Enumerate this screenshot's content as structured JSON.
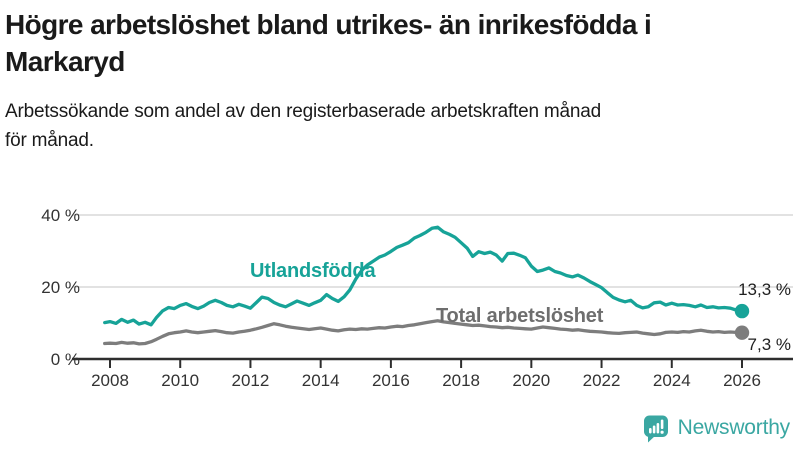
{
  "header": {
    "title": "Högre arbetslöshet bland utrikes- än inrikesfödda i Markaryd",
    "title_lines": [
      "Högre arbetslöshet bland utrikes- än inrikesfödda i",
      "Markaryd"
    ],
    "subtitle": "Arbetssökande som andel av den registerbaserade arbetskraften månad för månad.",
    "subtitle_lines": [
      "Arbetssökande som andel av den registerbaserade arbetskraften månad",
      "för månad."
    ]
  },
  "chart_data": {
    "type": "line",
    "title": "Högre arbetslöshet bland utrikes- än inrikesfödda i Markaryd",
    "subtitle": "Arbetssökande som andel av den registerbaserade arbetskraften månad för månad.",
    "xlabel": "",
    "ylabel": "",
    "grid": "horizontal",
    "legend": "inline-labels",
    "x_axis": {
      "min": 2007.85,
      "max": 2026.4,
      "ticks": [
        2008,
        2010,
        2012,
        2014,
        2016,
        2018,
        2020,
        2022,
        2024,
        2026
      ],
      "tick_labels": [
        "2008",
        "2010",
        "2012",
        "2014",
        "2016",
        "2018",
        "2020",
        "2022",
        "2024",
        "2026"
      ]
    },
    "y_axis": {
      "min": 0,
      "max": 40,
      "ticks": [
        0,
        20,
        40
      ],
      "tick_labels": [
        "0 %",
        "20 %",
        "40 %"
      ]
    },
    "series": [
      {
        "id": "utlandsfodda",
        "name": "Utlandsfödda",
        "color": "#17a398",
        "end_value": 13.3,
        "end_label": "13,3 %",
        "points": [
          [
            2007.85,
            10.1
          ],
          [
            2008.0,
            10.4
          ],
          [
            2008.17,
            9.9
          ],
          [
            2008.33,
            11.0
          ],
          [
            2008.5,
            10.2
          ],
          [
            2008.67,
            10.8
          ],
          [
            2008.83,
            9.7
          ],
          [
            2009.0,
            10.2
          ],
          [
            2009.17,
            9.5
          ],
          [
            2009.33,
            11.6
          ],
          [
            2009.5,
            13.4
          ],
          [
            2009.67,
            14.3
          ],
          [
            2009.83,
            14.0
          ],
          [
            2010.0,
            14.9
          ],
          [
            2010.17,
            15.4
          ],
          [
            2010.33,
            14.6
          ],
          [
            2010.5,
            14.0
          ],
          [
            2010.67,
            14.7
          ],
          [
            2010.83,
            15.7
          ],
          [
            2011.0,
            16.3
          ],
          [
            2011.17,
            15.7
          ],
          [
            2011.33,
            14.9
          ],
          [
            2011.5,
            14.5
          ],
          [
            2011.67,
            15.2
          ],
          [
            2011.83,
            14.7
          ],
          [
            2012.0,
            14.1
          ],
          [
            2012.17,
            15.7
          ],
          [
            2012.33,
            17.2
          ],
          [
            2012.5,
            16.8
          ],
          [
            2012.67,
            15.7
          ],
          [
            2012.83,
            15.0
          ],
          [
            2013.0,
            14.5
          ],
          [
            2013.17,
            15.3
          ],
          [
            2013.33,
            16.1
          ],
          [
            2013.5,
            15.5
          ],
          [
            2013.67,
            14.9
          ],
          [
            2013.83,
            15.6
          ],
          [
            2014.0,
            16.3
          ],
          [
            2014.17,
            17.9
          ],
          [
            2014.33,
            16.8
          ],
          [
            2014.5,
            16.0
          ],
          [
            2014.67,
            17.3
          ],
          [
            2014.83,
            19.2
          ],
          [
            2015.0,
            22.2
          ],
          [
            2015.17,
            24.6
          ],
          [
            2015.33,
            26.1
          ],
          [
            2015.5,
            27.2
          ],
          [
            2015.67,
            28.3
          ],
          [
            2015.83,
            28.9
          ],
          [
            2016.0,
            29.9
          ],
          [
            2016.17,
            31.0
          ],
          [
            2016.33,
            31.6
          ],
          [
            2016.5,
            32.3
          ],
          [
            2016.67,
            33.6
          ],
          [
            2016.83,
            34.3
          ],
          [
            2017.0,
            35.2
          ],
          [
            2017.17,
            36.3
          ],
          [
            2017.33,
            36.6
          ],
          [
            2017.5,
            35.3
          ],
          [
            2017.67,
            34.6
          ],
          [
            2017.83,
            33.8
          ],
          [
            2018.0,
            32.3
          ],
          [
            2018.17,
            30.8
          ],
          [
            2018.33,
            28.5
          ],
          [
            2018.5,
            29.8
          ],
          [
            2018.67,
            29.3
          ],
          [
            2018.83,
            29.7
          ],
          [
            2019.0,
            28.9
          ],
          [
            2019.17,
            27.2
          ],
          [
            2019.33,
            29.3
          ],
          [
            2019.5,
            29.4
          ],
          [
            2019.67,
            28.8
          ],
          [
            2019.83,
            28.1
          ],
          [
            2020.0,
            25.8
          ],
          [
            2020.17,
            24.3
          ],
          [
            2020.33,
            24.7
          ],
          [
            2020.5,
            25.3
          ],
          [
            2020.67,
            24.3
          ],
          [
            2020.83,
            23.9
          ],
          [
            2021.0,
            23.2
          ],
          [
            2021.17,
            22.8
          ],
          [
            2021.33,
            23.3
          ],
          [
            2021.5,
            22.5
          ],
          [
            2021.67,
            21.5
          ],
          [
            2021.83,
            20.7
          ],
          [
            2022.0,
            19.8
          ],
          [
            2022.17,
            18.4
          ],
          [
            2022.33,
            17.1
          ],
          [
            2022.5,
            16.4
          ],
          [
            2022.67,
            15.9
          ],
          [
            2022.83,
            16.3
          ],
          [
            2023.0,
            14.9
          ],
          [
            2023.17,
            14.2
          ],
          [
            2023.33,
            14.5
          ],
          [
            2023.5,
            15.6
          ],
          [
            2023.67,
            15.8
          ],
          [
            2023.83,
            15.0
          ],
          [
            2024.0,
            15.5
          ],
          [
            2024.17,
            15.0
          ],
          [
            2024.33,
            15.1
          ],
          [
            2024.5,
            14.9
          ],
          [
            2024.67,
            14.5
          ],
          [
            2024.83,
            15.0
          ],
          [
            2025.0,
            14.3
          ],
          [
            2025.17,
            14.5
          ],
          [
            2025.33,
            14.2
          ],
          [
            2025.5,
            14.3
          ],
          [
            2025.67,
            14.1
          ],
          [
            2025.83,
            13.6
          ],
          [
            2026.0,
            13.3
          ]
        ]
      },
      {
        "id": "total",
        "name": "Total arbetslöshet",
        "color": "#7d7d7d",
        "end_value": 7.3,
        "end_label": "7,3 %",
        "points": [
          [
            2007.85,
            4.3
          ],
          [
            2008.0,
            4.4
          ],
          [
            2008.17,
            4.3
          ],
          [
            2008.33,
            4.6
          ],
          [
            2008.5,
            4.4
          ],
          [
            2008.67,
            4.5
          ],
          [
            2008.83,
            4.2
          ],
          [
            2009.0,
            4.3
          ],
          [
            2009.17,
            4.8
          ],
          [
            2009.33,
            5.5
          ],
          [
            2009.5,
            6.3
          ],
          [
            2009.67,
            7.0
          ],
          [
            2009.83,
            7.3
          ],
          [
            2010.0,
            7.5
          ],
          [
            2010.17,
            7.8
          ],
          [
            2010.33,
            7.5
          ],
          [
            2010.5,
            7.3
          ],
          [
            2010.67,
            7.5
          ],
          [
            2010.83,
            7.7
          ],
          [
            2011.0,
            7.9
          ],
          [
            2011.17,
            7.6
          ],
          [
            2011.33,
            7.3
          ],
          [
            2011.5,
            7.2
          ],
          [
            2011.67,
            7.5
          ],
          [
            2011.83,
            7.7
          ],
          [
            2012.0,
            8.0
          ],
          [
            2012.17,
            8.4
          ],
          [
            2012.33,
            8.8
          ],
          [
            2012.5,
            9.3
          ],
          [
            2012.67,
            9.8
          ],
          [
            2012.83,
            9.5
          ],
          [
            2013.0,
            9.1
          ],
          [
            2013.17,
            8.8
          ],
          [
            2013.33,
            8.6
          ],
          [
            2013.5,
            8.4
          ],
          [
            2013.67,
            8.2
          ],
          [
            2013.83,
            8.4
          ],
          [
            2014.0,
            8.6
          ],
          [
            2014.17,
            8.3
          ],
          [
            2014.33,
            8.0
          ],
          [
            2014.5,
            7.8
          ],
          [
            2014.67,
            8.1
          ],
          [
            2014.83,
            8.3
          ],
          [
            2015.0,
            8.2
          ],
          [
            2015.17,
            8.4
          ],
          [
            2015.33,
            8.3
          ],
          [
            2015.5,
            8.5
          ],
          [
            2015.67,
            8.7
          ],
          [
            2015.83,
            8.6
          ],
          [
            2016.0,
            8.9
          ],
          [
            2016.17,
            9.1
          ],
          [
            2016.33,
            9.0
          ],
          [
            2016.5,
            9.3
          ],
          [
            2016.67,
            9.5
          ],
          [
            2016.83,
            9.8
          ],
          [
            2017.0,
            10.1
          ],
          [
            2017.17,
            10.4
          ],
          [
            2017.33,
            10.6
          ],
          [
            2017.5,
            10.3
          ],
          [
            2017.67,
            10.1
          ],
          [
            2017.83,
            9.9
          ],
          [
            2018.0,
            9.7
          ],
          [
            2018.17,
            9.5
          ],
          [
            2018.33,
            9.3
          ],
          [
            2018.5,
            9.4
          ],
          [
            2018.67,
            9.2
          ],
          [
            2018.83,
            9.0
          ],
          [
            2019.0,
            8.9
          ],
          [
            2019.17,
            8.7
          ],
          [
            2019.33,
            8.8
          ],
          [
            2019.5,
            8.6
          ],
          [
            2019.67,
            8.5
          ],
          [
            2019.83,
            8.4
          ],
          [
            2020.0,
            8.3
          ],
          [
            2020.17,
            8.6
          ],
          [
            2020.33,
            8.9
          ],
          [
            2020.5,
            8.7
          ],
          [
            2020.67,
            8.5
          ],
          [
            2020.83,
            8.3
          ],
          [
            2021.0,
            8.2
          ],
          [
            2021.17,
            8.0
          ],
          [
            2021.33,
            8.1
          ],
          [
            2021.5,
            7.9
          ],
          [
            2021.67,
            7.7
          ],
          [
            2021.83,
            7.6
          ],
          [
            2022.0,
            7.5
          ],
          [
            2022.17,
            7.3
          ],
          [
            2022.33,
            7.2
          ],
          [
            2022.5,
            7.1
          ],
          [
            2022.67,
            7.3
          ],
          [
            2022.83,
            7.4
          ],
          [
            2023.0,
            7.5
          ],
          [
            2023.17,
            7.2
          ],
          [
            2023.33,
            7.0
          ],
          [
            2023.5,
            6.8
          ],
          [
            2023.67,
            7.0
          ],
          [
            2023.83,
            7.4
          ],
          [
            2024.0,
            7.5
          ],
          [
            2024.17,
            7.4
          ],
          [
            2024.33,
            7.6
          ],
          [
            2024.5,
            7.5
          ],
          [
            2024.67,
            7.8
          ],
          [
            2024.83,
            8.0
          ],
          [
            2025.0,
            7.7
          ],
          [
            2025.17,
            7.5
          ],
          [
            2025.33,
            7.6
          ],
          [
            2025.5,
            7.4
          ],
          [
            2025.67,
            7.5
          ],
          [
            2025.83,
            7.4
          ],
          [
            2026.0,
            7.3
          ]
        ]
      }
    ],
    "colors": {
      "utlandsfodda": "#17a398",
      "total": "#7d7d7d",
      "gridline": "#d8d8d8",
      "axis": "#2e2e2e"
    }
  },
  "footer": {
    "brand": "Newsworthy",
    "logo_icon": "newsworthy-speech-bubble-bars-icon",
    "brand_color": "#3aa7a2"
  }
}
